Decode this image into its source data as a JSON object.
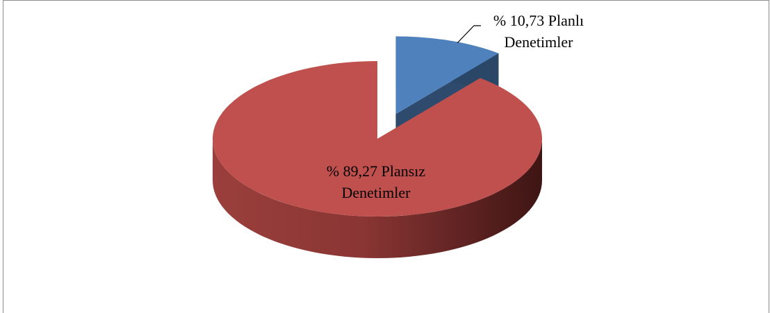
{
  "chart_data": {
    "type": "pie",
    "values": [
      10.73,
      89.27
    ],
    "value_labels": [
      "% 10,73 Planlı Denetimler",
      "% 89,27 Plansız Denetimler"
    ],
    "colors": [
      "#4f81bd",
      "#c0504d"
    ]
  }
}
